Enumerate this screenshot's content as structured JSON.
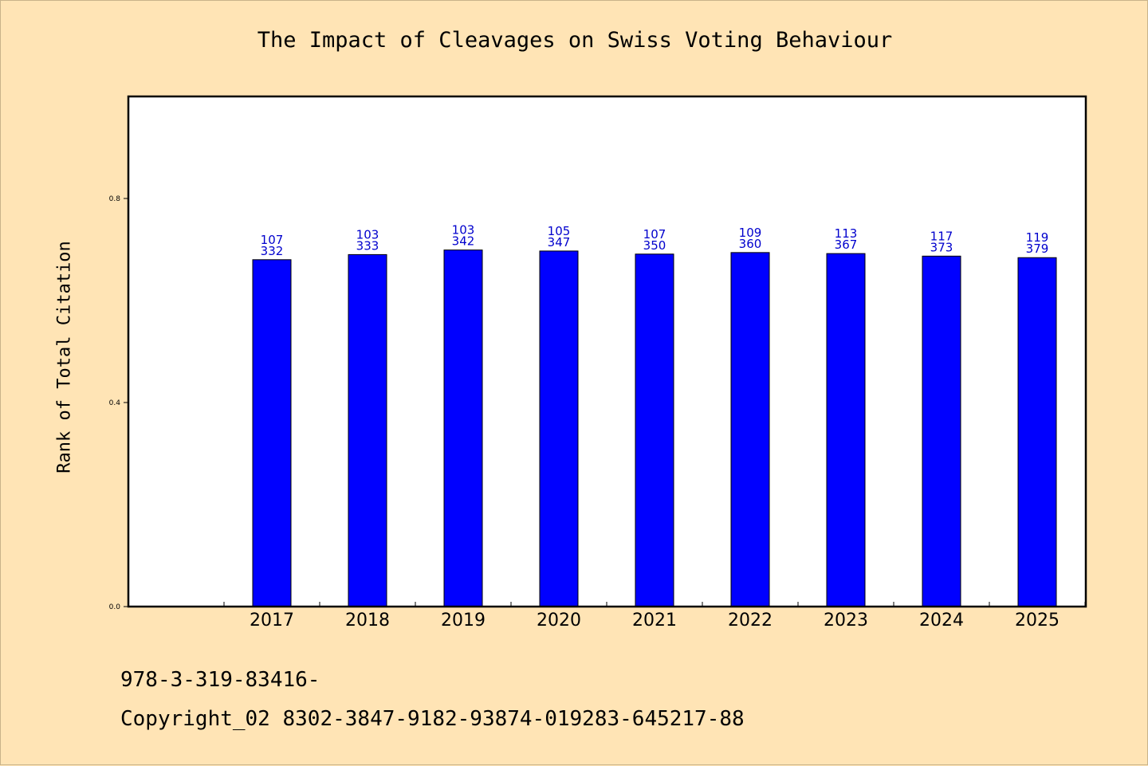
{
  "chart_data": {
    "type": "bar",
    "title": "The Impact of Cleavages on Swiss Voting Behaviour",
    "xlabel": "",
    "ylabel": "Rank of Total Citation",
    "ylim": [
      0,
      1.0
    ],
    "yticks": [
      "0.0",
      "0.4",
      "0.8"
    ],
    "categories": [
      "2017",
      "2018",
      "2019",
      "2020",
      "2021",
      "2022",
      "2023",
      "2024",
      "2025"
    ],
    "values": [
      0.68,
      0.69,
      0.699,
      0.697,
      0.691,
      0.694,
      0.692,
      0.687,
      0.684
    ],
    "labels_top": [
      "107",
      "103",
      "103",
      "105",
      "107",
      "109",
      "113",
      "117",
      "119"
    ],
    "labels_bottom": [
      "332",
      "333",
      "342",
      "347",
      "350",
      "360",
      "367",
      "373",
      "379"
    ],
    "bar_color": "#0000FF",
    "label_color": "#0000CD",
    "grid": false
  },
  "footer": {
    "isbn": "978-3-319-83416-",
    "copyright": "Copyright_02 8302-3847-9182-93874-019283-645217-88"
  },
  "colors": {
    "background": "#FFE4B5",
    "plot_background": "#FFFFFF"
  }
}
